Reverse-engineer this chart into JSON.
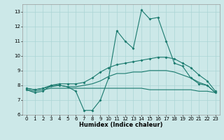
{
  "xlabel": "Humidex (Indice chaleur)",
  "x": [
    0,
    1,
    2,
    3,
    4,
    5,
    6,
    7,
    8,
    9,
    10,
    11,
    12,
    13,
    14,
    15,
    16,
    17,
    18,
    19,
    20,
    21,
    22,
    23
  ],
  "line1": [
    7.7,
    7.5,
    7.6,
    8.0,
    8.0,
    7.9,
    7.6,
    6.3,
    6.3,
    7.0,
    8.5,
    11.7,
    11.0,
    10.5,
    13.1,
    12.5,
    12.6,
    11.0,
    9.5,
    9.3,
    8.5,
    8.1,
    8.0,
    7.5
  ],
  "line2": [
    7.8,
    7.7,
    7.8,
    8.0,
    8.1,
    8.1,
    8.1,
    8.2,
    8.5,
    8.9,
    9.2,
    9.4,
    9.5,
    9.6,
    9.7,
    9.8,
    9.9,
    9.9,
    9.8,
    9.5,
    9.2,
    8.7,
    8.3,
    7.6
  ],
  "line3": [
    7.8,
    7.7,
    7.8,
    7.9,
    8.0,
    7.9,
    7.9,
    8.0,
    8.1,
    8.3,
    8.6,
    8.8,
    8.8,
    8.9,
    8.9,
    9.0,
    9.0,
    9.0,
    8.9,
    8.7,
    8.5,
    8.2,
    8.0,
    7.5
  ],
  "line4": [
    7.7,
    7.6,
    7.7,
    7.8,
    7.8,
    7.8,
    7.8,
    7.8,
    7.8,
    7.8,
    7.8,
    7.8,
    7.8,
    7.8,
    7.8,
    7.7,
    7.7,
    7.7,
    7.7,
    7.7,
    7.7,
    7.6,
    7.6,
    7.5
  ],
  "line_color": "#1a7a6e",
  "bg_color": "#cce8e8",
  "grid_color": "#aad4d4",
  "ylim": [
    6.0,
    13.5
  ],
  "yticks": [
    6,
    7,
    8,
    9,
    10,
    11,
    12,
    13
  ],
  "xticks": [
    0,
    1,
    2,
    3,
    4,
    5,
    6,
    7,
    8,
    9,
    10,
    11,
    12,
    13,
    14,
    15,
    16,
    17,
    18,
    19,
    20,
    21,
    22,
    23
  ]
}
